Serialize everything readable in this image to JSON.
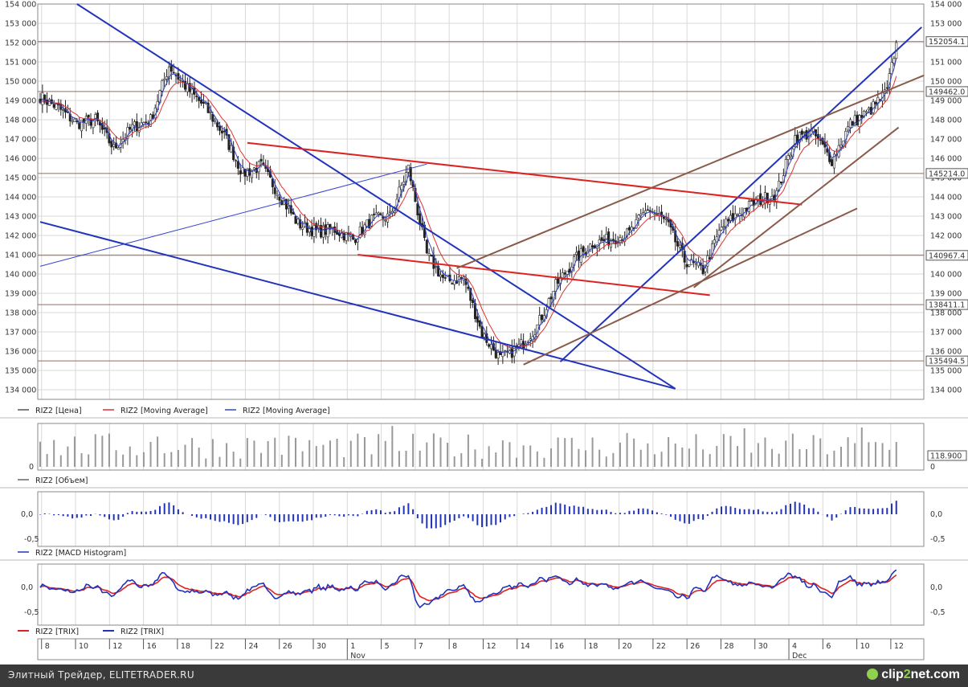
{
  "chart_data": [
    {
      "type": "candlestick",
      "panel": "price",
      "ylim": [
        133500,
        154000
      ],
      "y_ticks": [
        134000,
        135000,
        136000,
        137000,
        138000,
        139000,
        140000,
        141000,
        142000,
        143000,
        144000,
        145000,
        146000,
        147000,
        148000,
        149000,
        150000,
        151000,
        152000,
        153000,
        154000
      ],
      "y_tick_labels": [
        "134 000",
        "135 000",
        "136 000",
        "137 000",
        "138 000",
        "139 000",
        "140 000",
        "141 000",
        "142 000",
        "143 000",
        "144 000",
        "145 000",
        "146 000",
        "147 000",
        "148 000",
        "149 000",
        "150 000",
        "151 000",
        "152 000",
        "153 000",
        "154 000"
      ],
      "grid": true,
      "legend": [
        "RIZ2 [Цена]",
        "RIZ2 [Moving Average]",
        "RIZ2 [Moving Average]"
      ],
      "legend_colors": [
        "#555555",
        "#dd3333",
        "#3344cc"
      ],
      "horizontal_levels": [
        {
          "value": 152054,
          "label": "152054.1"
        },
        {
          "value": 149462,
          "label": "149462.0"
        },
        {
          "value": 145214,
          "label": "145214.0"
        },
        {
          "value": 140967,
          "label": "140967.4"
        },
        {
          "value": 138411,
          "label": "138411.1"
        },
        {
          "value": 135494,
          "label": "135494.5"
        }
      ],
      "close_anchors": [
        [
          0,
          149200
        ],
        [
          8,
          148600
        ],
        [
          16,
          147800
        ],
        [
          24,
          148000
        ],
        [
          32,
          146500
        ],
        [
          40,
          147600
        ],
        [
          48,
          148000
        ],
        [
          56,
          150800
        ],
        [
          64,
          149600
        ],
        [
          72,
          148600
        ],
        [
          80,
          147200
        ],
        [
          88,
          145200
        ],
        [
          96,
          145600
        ],
        [
          104,
          144100
        ],
        [
          112,
          142600
        ],
        [
          120,
          142200
        ],
        [
          128,
          142300
        ],
        [
          136,
          141800
        ],
        [
          144,
          142800
        ],
        [
          152,
          143000
        ],
        [
          160,
          145500
        ],
        [
          168,
          141000
        ],
        [
          176,
          139600
        ],
        [
          184,
          139800
        ],
        [
          192,
          136900
        ],
        [
          200,
          135600
        ],
        [
          208,
          136200
        ],
        [
          216,
          137300
        ],
        [
          224,
          139400
        ],
        [
          232,
          140700
        ],
        [
          240,
          141600
        ],
        [
          248,
          141800
        ],
        [
          256,
          142100
        ],
        [
          264,
          143400
        ],
        [
          272,
          142700
        ],
        [
          280,
          140700
        ],
        [
          288,
          140200
        ],
        [
          296,
          142400
        ],
        [
          304,
          143200
        ],
        [
          312,
          143800
        ],
        [
          320,
          144200
        ],
        [
          328,
          147100
        ],
        [
          336,
          147300
        ],
        [
          344,
          145900
        ],
        [
          352,
          147800
        ],
        [
          360,
          148400
        ],
        [
          368,
          149500
        ],
        [
          372,
          152000
        ]
      ],
      "candle_count": 373,
      "trendlines": [
        {
          "from": [
            16,
            154000
          ],
          "to": [
            276,
            134050
          ],
          "color": "#2233bb"
        },
        {
          "from": [
            0,
            142700
          ],
          "to": [
            276,
            134050
          ],
          "color": "#2233bb"
        },
        {
          "from": [
            0,
            140400
          ],
          "to": [
            168,
            145700
          ],
          "color": "#3344cc"
        },
        {
          "from": [
            226,
            135450
          ],
          "to": [
            383,
            152800
          ],
          "color": "#2233bb"
        },
        {
          "from": [
            90,
            146800
          ],
          "to": [
            331,
            143600
          ],
          "color": "#dd2222"
        },
        {
          "from": [
            138,
            141000
          ],
          "to": [
            291,
            138900
          ],
          "color": "#dd2222"
        },
        {
          "from": [
            181,
            140300
          ],
          "to": [
            384,
            150300
          ],
          "color": "#8a5a4a"
        },
        {
          "from": [
            210,
            135300
          ],
          "to": [
            355,
            143400
          ],
          "color": "#8a5a4a"
        },
        {
          "from": [
            284,
            139300
          ],
          "to": [
            373,
            147600
          ],
          "color": "#8a5a4a"
        }
      ]
    },
    {
      "type": "bar",
      "panel": "volume",
      "legend": "RIZ2 [Объем]",
      "last_value_label": "118.900",
      "y_tick_labels": [
        "0",
        "0"
      ]
    },
    {
      "type": "bar",
      "panel": "macd",
      "legend": "RIZ2 [MACD Histogram]",
      "y_tick_labels": [
        "0,0",
        "-0,5"
      ],
      "ylim": [
        -0.6,
        0.45
      ]
    },
    {
      "type": "line",
      "panel": "trix",
      "legend": [
        "RIZ2 [TRIX]",
        "RIZ2 [TRIX]"
      ],
      "legend_colors": [
        "#dd2222",
        "#2233bb"
      ],
      "y_tick_labels": [
        "0,0",
        "-0,5"
      ],
      "ylim": [
        -0.65,
        0.45
      ]
    }
  ],
  "x_axis": {
    "day_labels": [
      "8",
      "10",
      "12",
      "16",
      "18",
      "22",
      "24",
      "26",
      "30",
      "1",
      "5",
      "7",
      "8",
      "12",
      "14",
      "16",
      "18",
      "20",
      "22",
      "26",
      "28",
      "30",
      "4",
      "6",
      "10",
      "12"
    ],
    "month_labels": [
      "Nov",
      "Dec"
    ]
  },
  "colors": {
    "candle_up": "#ffffff",
    "candle_down": "#222222",
    "grid": "#d8d8d8",
    "level": "#9a6a60",
    "blue": "#2233bb",
    "red": "#dd2222"
  },
  "footer": {
    "text": "Элитный Трейдер, ELITETRADER.RU",
    "logo_left": "clip",
    "logo_mid": "2",
    "logo_right": "net.com"
  }
}
